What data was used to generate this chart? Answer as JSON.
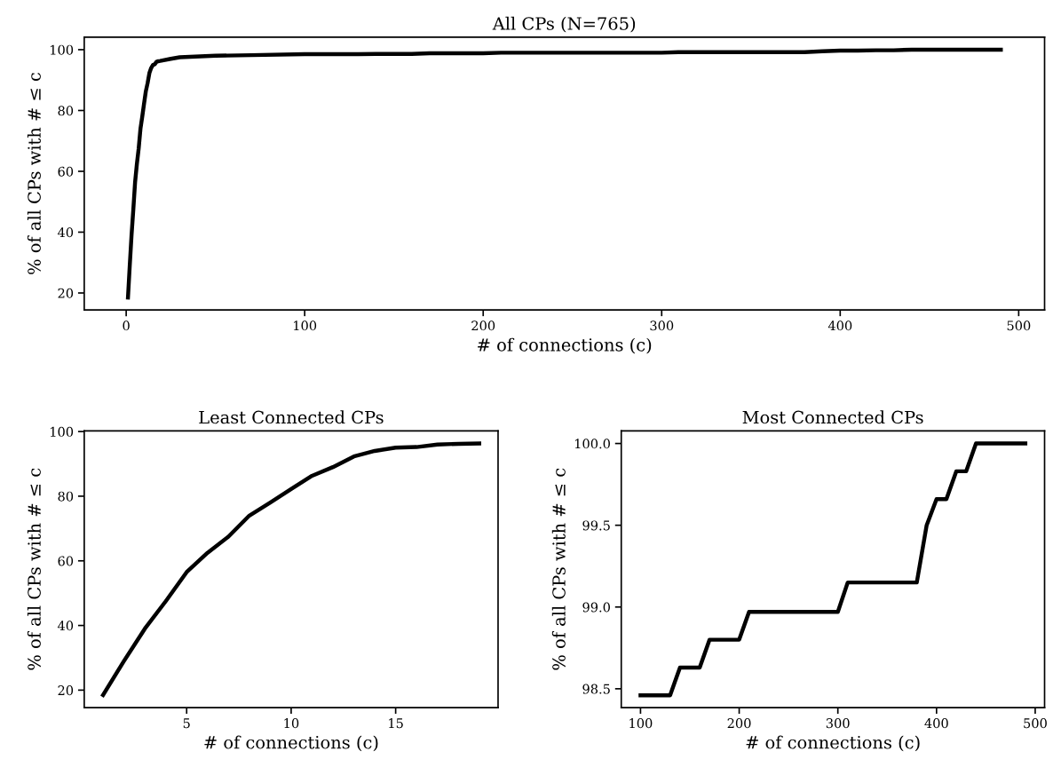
{
  "chart_data": [
    {
      "type": "line",
      "title": "All CPs (N=765)",
      "xlabel": "# of connections (c)",
      "ylabel": "% of all CPs with # ≤ c",
      "x": [
        1,
        2,
        3,
        4,
        5,
        6,
        7,
        8,
        9,
        10,
        11,
        12,
        13,
        14,
        15,
        16,
        17,
        18,
        19,
        25,
        30,
        50,
        70,
        100,
        130,
        140,
        160,
        170,
        200,
        210,
        300,
        310,
        380,
        390,
        400,
        410,
        420,
        430,
        440,
        490
      ],
      "series": [
        {
          "color": "#000000",
          "values": [
            18.5,
            29,
            39,
            47.5,
            56.5,
            62.5,
            67.5,
            74,
            78,
            82.2,
            86.3,
            89,
            92.3,
            94,
            95,
            95.2,
            96,
            96.2,
            96.3,
            97,
            97.5,
            98,
            98.2,
            98.5,
            98.5,
            98.6,
            98.6,
            98.8,
            98.8,
            99,
            99,
            99.2,
            99.2,
            99.5,
            99.7,
            99.7,
            99.8,
            99.8,
            100,
            100
          ]
        }
      ],
      "xlim": [
        -23.5,
        514.5
      ],
      "xticks": [
        0,
        100,
        200,
        300,
        400,
        500
      ],
      "ylim": [
        14.4,
        104.1
      ],
      "yticks": [
        20,
        40,
        60,
        80,
        100
      ],
      "grid": false,
      "legend": false
    },
    {
      "type": "line",
      "title": "Least Connected CPs",
      "xlabel": "# of connections (c)",
      "ylabel": "% of all CPs with # ≤ c",
      "x": [
        1,
        2,
        3,
        4,
        5,
        6,
        7,
        8,
        9,
        10,
        11,
        12,
        13,
        14,
        15,
        16,
        17,
        18,
        19
      ],
      "series": [
        {
          "color": "#000000",
          "values": [
            18.5,
            29,
            39,
            47.5,
            56.5,
            62.5,
            67.5,
            74,
            78,
            82.2,
            86.3,
            89,
            92.3,
            94,
            95,
            95.2,
            96,
            96.2,
            96.3
          ]
        }
      ],
      "xlim": [
        0.1,
        19.9
      ],
      "xticks": [
        5,
        10,
        15
      ],
      "ylim": [
        14.6,
        100.2
      ],
      "yticks": [
        20,
        40,
        60,
        80,
        100
      ],
      "grid": false,
      "legend": false
    },
    {
      "type": "line",
      "title": "Most Connected CPs",
      "xlabel": "# of connections (c)",
      "ylabel": "% of all CPs with # ≤ c",
      "x": [
        100,
        130,
        140,
        160,
        170,
        200,
        210,
        300,
        310,
        380,
        390,
        400,
        410,
        420,
        430,
        440,
        490
      ],
      "series": [
        {
          "color": "#000000",
          "values": [
            98.46,
            98.46,
            98.63,
            98.63,
            98.8,
            98.8,
            98.97,
            98.97,
            99.15,
            99.15,
            99.5,
            99.66,
            99.66,
            99.83,
            99.83,
            100,
            100
          ]
        }
      ],
      "xlim": [
        80.5,
        509.5
      ],
      "xticks": [
        100,
        200,
        300,
        400,
        500
      ],
      "ylim": [
        98.385,
        100.077
      ],
      "yticks": [
        {
          "value": 98.5,
          "label": "98.5"
        },
        {
          "value": 99.0,
          "label": "99.0"
        },
        {
          "value": 99.5,
          "label": "99.5"
        },
        {
          "value": 100.0,
          "label": "100.0"
        }
      ],
      "grid": false,
      "legend": false
    }
  ]
}
